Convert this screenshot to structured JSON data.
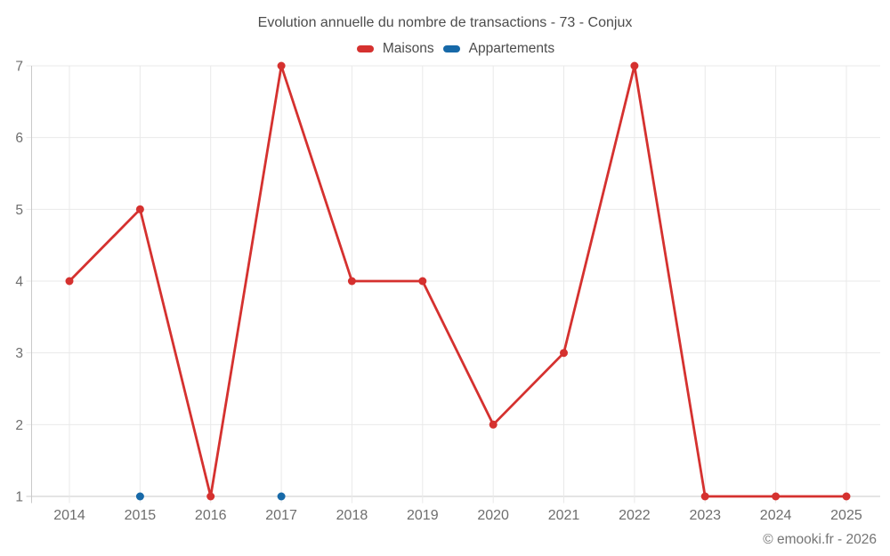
{
  "chart_data": {
    "type": "line",
    "title": "Evolution annuelle du nombre de transactions - 73 - Conjux",
    "categories": [
      "2014",
      "2015",
      "2016",
      "2017",
      "2018",
      "2019",
      "2020",
      "2021",
      "2022",
      "2023",
      "2024",
      "2025"
    ],
    "series": [
      {
        "name": "Maisons",
        "color": "#d5312f",
        "style": "line+markers",
        "values": [
          4,
          5,
          1,
          7,
          4,
          4,
          2,
          3,
          7,
          1,
          1,
          1
        ]
      },
      {
        "name": "Appartements",
        "color": "#1769a8",
        "style": "markers",
        "values": [
          null,
          1,
          null,
          1,
          null,
          null,
          null,
          null,
          null,
          null,
          null,
          null
        ]
      }
    ],
    "xlabel": "",
    "ylabel": "",
    "ylim": [
      1,
      7
    ],
    "yticks": [
      1,
      2,
      3,
      4,
      5,
      6,
      7
    ],
    "grid": true,
    "legend_position": "top"
  },
  "footer": {
    "credit": "© emooki.fr - 2026"
  },
  "theme": {
    "background": "#ffffff",
    "grid_color": "#e9e9e9",
    "axis_color": "#c9c9c9",
    "tick_label_color": "#6e6e6e",
    "title_color": "#4c4c4c",
    "legend_text_color": "#4c4c4c",
    "footer_color": "#757575"
  }
}
